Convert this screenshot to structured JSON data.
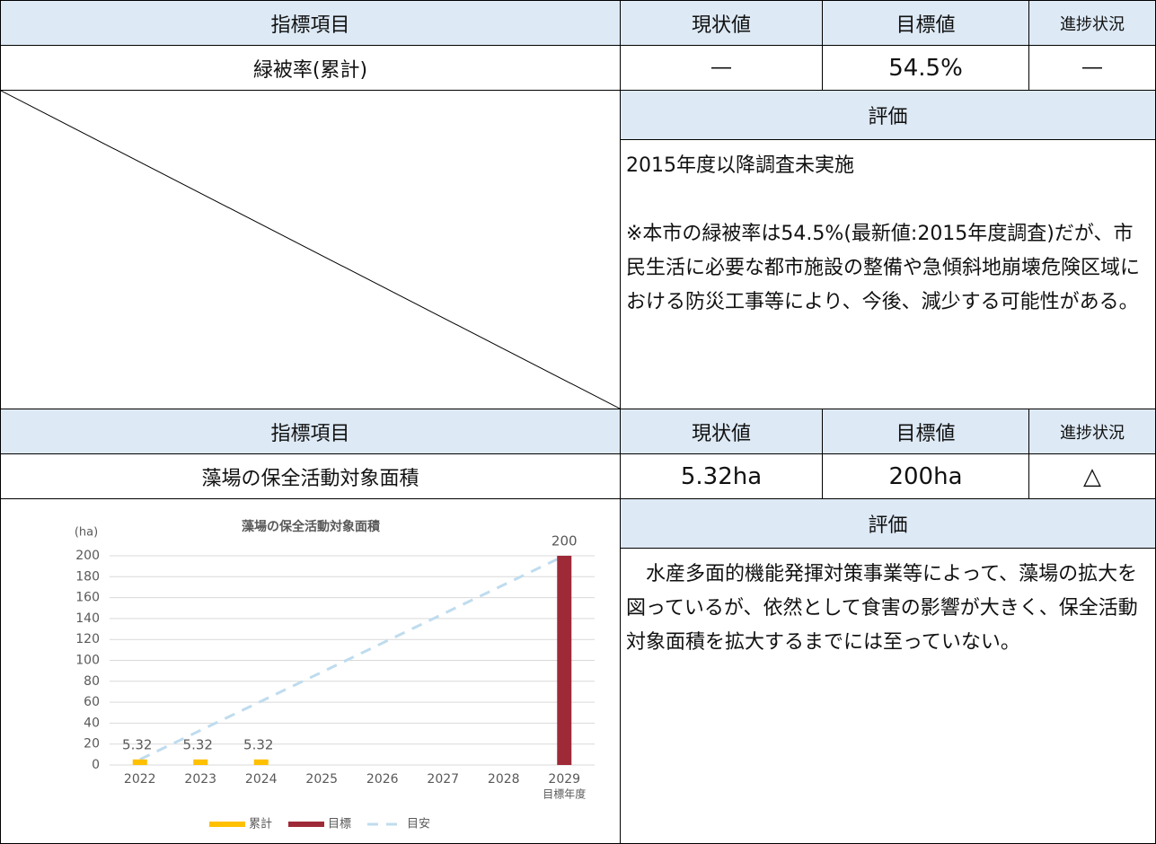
{
  "table1": {
    "header": [
      "指標項目",
      "現状値",
      "目標値",
      "進捗状況"
    ],
    "row": [
      "緑被率(累計)",
      "―",
      "54.5%",
      "―"
    ],
    "evaluation_label": "評価",
    "evaluation": [
      "2015年度以降調査未実施",
      "※本市の緑被率は54.5%(最新値:2015年度調査)だが、市民生活に必要な都市施設の整備や急傾斜地崩壊危険区域における防災工事等により、今後、減少する可能性がある。"
    ]
  },
  "table2": {
    "header": [
      "指標項目",
      "現状値",
      "目標値",
      "進捗状況"
    ],
    "row": [
      "藻場の保全活動対象面積",
      "5.32ha",
      "200ha",
      "△"
    ],
    "evaluation_label": "評価",
    "evaluation": [
      "水産多面的機能発揮対策事業等によって、藻場の拡大を図っているが、依然として食害の影響が大きく、保全活動対象面積を拡大するまでには至っていない。"
    ]
  },
  "chart_data": {
    "type": "bar",
    "title": "藻場の保全活動対象面積",
    "y_unit": "(ha)",
    "categories": [
      "2022",
      "2023",
      "2024",
      "2025",
      "2026",
      "2027",
      "2028",
      "2029"
    ],
    "category_note": "目標年度",
    "series": [
      {
        "name": "累計",
        "color": "#ffc000",
        "values": [
          5.32,
          5.32,
          5.32,
          null,
          null,
          null,
          null,
          null
        ]
      },
      {
        "name": "目標",
        "color": "#9e2a38",
        "values": [
          null,
          null,
          null,
          null,
          null,
          null,
          null,
          200
        ]
      },
      {
        "name": "目安",
        "color": "#bfdcee",
        "kind": "dashed-line",
        "values": [
          5.32,
          33.13,
          60.94,
          88.75,
          116.56,
          144.38,
          172.19,
          200
        ]
      }
    ],
    "ylim": [
      0,
      200
    ],
    "yticks": [
      0,
      20,
      40,
      60,
      80,
      100,
      120,
      140,
      160,
      180,
      200
    ],
    "grid": true
  }
}
